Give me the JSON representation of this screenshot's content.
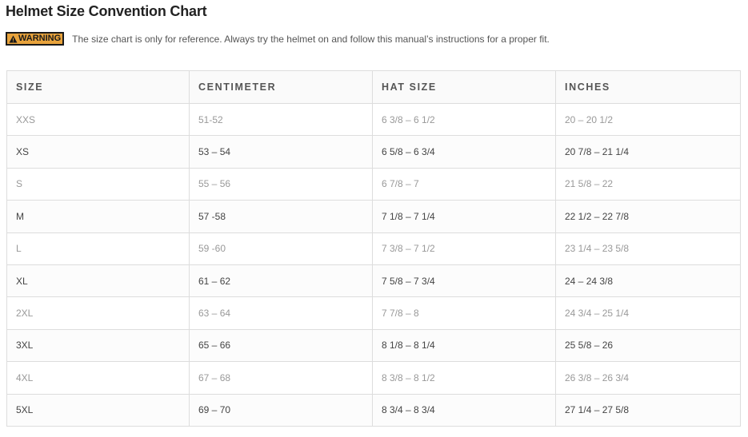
{
  "title": "Helmet Size Convention Chart",
  "warning": {
    "badge_label": "WARNING",
    "icon": "warning-triangle-icon",
    "badge_color": "#e8a33c",
    "text": "The size chart is only for reference. Always try the helmet on and follow this manual’s instructions for a proper fit."
  },
  "table": {
    "headers": [
      "SIZE",
      "CENTIMETER",
      "HAT SIZE",
      "INCHES"
    ],
    "rows": [
      [
        "XXS",
        "51-52",
        "6 3/8 – 6 1/2",
        "20 – 20 1/2"
      ],
      [
        "XS",
        "53 – 54",
        "6 5/8 – 6 3/4",
        "20 7/8 – 21 1/4"
      ],
      [
        "S",
        "55 – 56",
        "6 7/8 – 7",
        "21 5/8 – 22"
      ],
      [
        "M",
        "57 -58",
        "7 1/8 – 7 1/4",
        "22 1/2 – 22 7/8"
      ],
      [
        "L",
        "59 -60",
        "7 3/8 – 7 1/2",
        "23 1/4 – 23 5/8"
      ],
      [
        "XL",
        "61 – 62",
        "7 5/8 – 7 3/4",
        "24 – 24 3/8"
      ],
      [
        "2XL",
        "63 – 64",
        "7 7/8 – 8",
        "24 3/4 – 25 1/4"
      ],
      [
        "3XL",
        "65 – 66",
        "8 1/8 – 8 1/4",
        "25 5/8 – 26"
      ],
      [
        "4XL",
        "67 – 68",
        "8 3/8 – 8 1/2",
        "26 3/8 – 26 3/4"
      ],
      [
        "5XL",
        "69 – 70",
        "8 3/4 – 8 3/4",
        "27 1/4 – 27 5/8"
      ]
    ]
  }
}
